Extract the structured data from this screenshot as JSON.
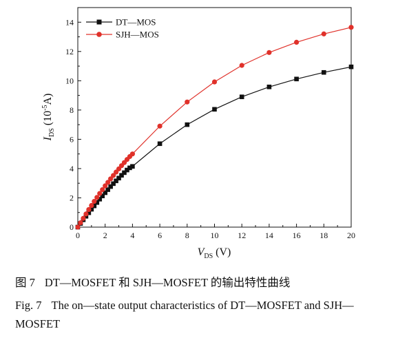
{
  "chart_data": {
    "type": "line",
    "title": "",
    "xlabel_main": "V",
    "xlabel_sub": "DS",
    "xlabel_unit": " (V)",
    "ylabel_main": "I",
    "ylabel_sub": "DS",
    "ylabel_unit_pre": " (10",
    "ylabel_unit_sup": "-5",
    "ylabel_unit_post": "A)",
    "xlim": [
      0,
      20
    ],
    "ylim": [
      0,
      15
    ],
    "xticks": [
      0,
      2,
      4,
      6,
      8,
      10,
      12,
      14,
      16,
      18,
      20
    ],
    "yticks": [
      0,
      2,
      4,
      6,
      8,
      10,
      12,
      14
    ],
    "grid": false,
    "legend_position": "top-left",
    "series": [
      {
        "name": "DT—MOS",
        "color": "#111111",
        "marker": "square",
        "x": [
          0,
          0.2,
          0.4,
          0.6,
          0.8,
          1.0,
          1.2,
          1.4,
          1.6,
          1.8,
          2.0,
          2.2,
          2.4,
          2.6,
          2.8,
          3.0,
          3.2,
          3.4,
          3.6,
          3.8,
          4.0,
          6,
          8,
          10,
          12,
          14,
          16,
          18,
          20
        ],
        "y": [
          0,
          0.25,
          0.5,
          0.74,
          0.98,
          1.22,
          1.45,
          1.68,
          1.91,
          2.13,
          2.35,
          2.56,
          2.77,
          2.97,
          3.16,
          3.35,
          3.54,
          3.72,
          3.9,
          4.05,
          4.15,
          5.7,
          7.0,
          8.05,
          8.9,
          9.58,
          10.12,
          10.57,
          10.95
        ]
      },
      {
        "name": "SJH—MOS",
        "color": "#e0312a",
        "marker": "circle",
        "x": [
          0,
          0.2,
          0.4,
          0.6,
          0.8,
          1.0,
          1.2,
          1.4,
          1.6,
          1.8,
          2.0,
          2.2,
          2.4,
          2.6,
          2.8,
          3.0,
          3.2,
          3.4,
          3.6,
          3.8,
          4.0,
          6,
          8,
          10,
          12,
          14,
          16,
          18,
          20
        ],
        "y": [
          0,
          0.3,
          0.6,
          0.9,
          1.2,
          1.48,
          1.76,
          2.03,
          2.3,
          2.56,
          2.82,
          3.06,
          3.3,
          3.53,
          3.76,
          3.98,
          4.2,
          4.41,
          4.62,
          4.82,
          5.0,
          6.9,
          8.55,
          9.92,
          11.05,
          11.93,
          12.63,
          13.2,
          13.65
        ]
      }
    ]
  },
  "caption": {
    "cn_label": "图 7",
    "cn_text": "DT—MOSFET 和 SJH—MOSFET 的输出特性曲线",
    "en_label": "Fig. 7",
    "en_text": "The on—state output characteristics of DT—MOSFET and SJH—MOSFET"
  }
}
